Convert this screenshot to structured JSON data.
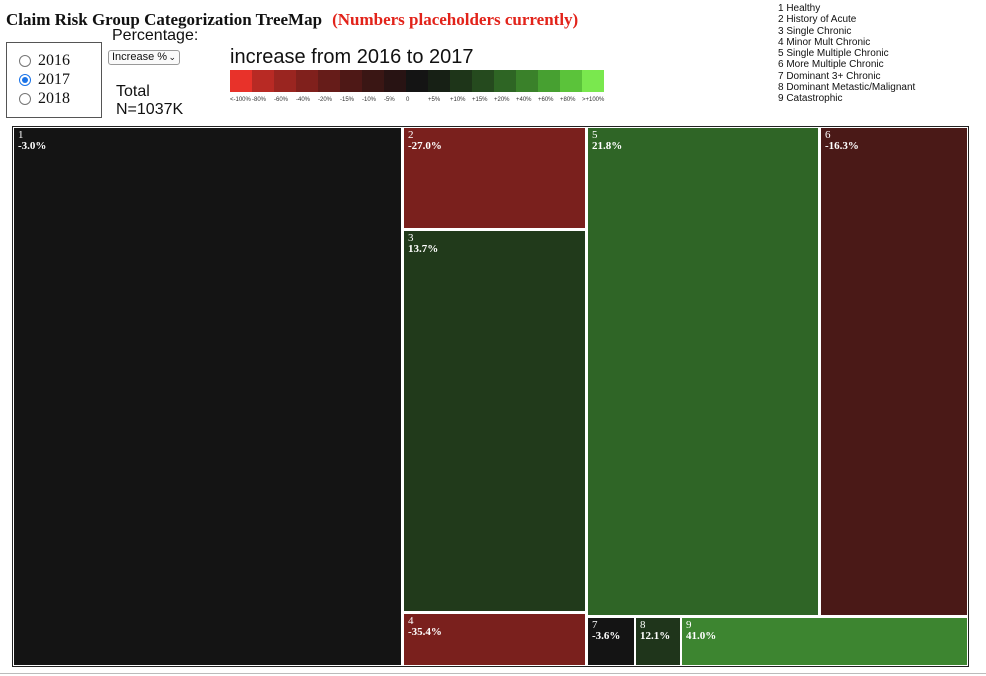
{
  "header": {
    "title": "Claim Risk Group Categorization TreeMap",
    "subtitle": "(Numbers placeholders currently)"
  },
  "years": [
    {
      "label": "2016",
      "selected": false
    },
    {
      "label": "2017",
      "selected": true
    },
    {
      "label": "2018",
      "selected": false
    }
  ],
  "controls": {
    "percentage_label": "Percentage:",
    "select_value": "Increase %",
    "total_label": "Total",
    "total_value": "N=1037K"
  },
  "legend": {
    "title": "increase from 2016 to 2017",
    "colors": [
      "#e8322a",
      "#b82a24",
      "#9a2520",
      "#80201c",
      "#661c19",
      "#4e1816",
      "#3a1614",
      "#281313",
      "#141414",
      "#172015",
      "#1e3519",
      "#254a1e",
      "#2e6524",
      "#3a812a",
      "#47a031",
      "#5bc33a",
      "#7ae84e"
    ],
    "ticks": [
      "<-100%",
      "-80%",
      "-60%",
      "-40%",
      "-20%",
      "-15%",
      "-10%",
      "-5%",
      "0",
      "+5%",
      "+10%",
      "+15%",
      "+20%",
      "+40%",
      "+60%",
      "+80%",
      ">+100%"
    ]
  },
  "risk_groups": [
    "1 Healthy",
    "2 History of Acute",
    "3 Single Chronic",
    "4 Minor Mult Chronic",
    "5 Single Multiple Chronic",
    "6 More Multiple Chronic",
    "7 Dominant 3+ Chronic",
    "8 Dominant Metastic/Malignant",
    "9 Catastrophic"
  ],
  "chart_data": {
    "type": "treemap",
    "cells": [
      {
        "id": "1",
        "value_text": "-3.0%",
        "change": -3.0,
        "color": "#141414"
      },
      {
        "id": "2",
        "value_text": "-27.0%",
        "change": -27.0,
        "color": "#7a201d"
      },
      {
        "id": "3",
        "value_text": "13.7%",
        "change": 13.7,
        "color": "#213a1b"
      },
      {
        "id": "4",
        "value_text": "-35.4%",
        "change": -35.4,
        "color": "#7a201d"
      },
      {
        "id": "5",
        "value_text": "21.8%",
        "change": 21.8,
        "color": "#2f6526"
      },
      {
        "id": "6",
        "value_text": "-16.3%",
        "change": -16.3,
        "color": "#4a1917"
      },
      {
        "id": "7",
        "value_text": "-3.6%",
        "change": -3.6,
        "color": "#141414"
      },
      {
        "id": "8",
        "value_text": "12.1%",
        "change": 12.1,
        "color": "#1f351b"
      },
      {
        "id": "9",
        "value_text": "41.0%",
        "change": 41.0,
        "color": "#3d8530"
      }
    ]
  }
}
